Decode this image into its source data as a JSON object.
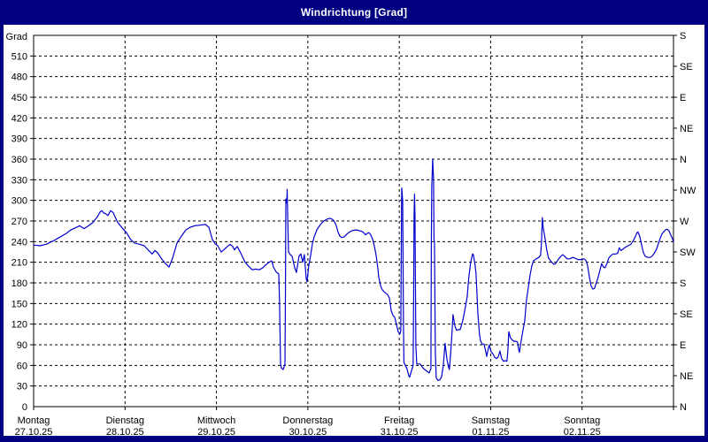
{
  "title": "Windrichtung [Grad]",
  "colors": {
    "frame": "#000080",
    "panel_background": "#ffffff",
    "title_text": "#ffffff",
    "axis": "#000000",
    "grid": "#000000",
    "line": "#0000CD"
  },
  "y_axis_left": {
    "unit_label": "Grad",
    "min": 0,
    "max": 540,
    "label_step": 30,
    "zero_label": "0"
  },
  "y_axis_right": {
    "step": 45,
    "labels": [
      "N",
      "NE",
      "E",
      "SE",
      "S",
      "SW",
      "W",
      "NW",
      "N",
      "NE",
      "E",
      "SE",
      "S"
    ]
  },
  "x_axis": {
    "days": [
      {
        "name": "Montag",
        "date": "27.10.25"
      },
      {
        "name": "Dienstag",
        "date": "28.10.25"
      },
      {
        "name": "Mittwoch",
        "date": "29.10.25"
      },
      {
        "name": "Donnerstag",
        "date": "30.10.25"
      },
      {
        "name": "Freitag",
        "date": "31.10.25"
      },
      {
        "name": "Samstag",
        "date": "01.11.25"
      },
      {
        "name": "Sonntag",
        "date": "02.11.25"
      }
    ]
  },
  "chart_data": {
    "type": "line",
    "title": "Windrichtung [Grad]",
    "ylabel": "Grad",
    "ylim": [
      0,
      540
    ],
    "y_grid_step": 30,
    "xlim_days": [
      0,
      7
    ],
    "grid": true,
    "legend": false,
    "series": [
      {
        "name": "Windrichtung",
        "color": "#0000CD",
        "points": [
          [
            0,
            235
          ],
          [
            0.068,
            234
          ],
          [
            0.136,
            236
          ],
          [
            0.213,
            241
          ],
          [
            0.281,
            246
          ],
          [
            0.358,
            252
          ],
          [
            0.407,
            257
          ],
          [
            0.455,
            260
          ],
          [
            0.503,
            263
          ],
          [
            0.552,
            259
          ],
          [
            0.6,
            263
          ],
          [
            0.649,
            268
          ],
          [
            0.697,
            276
          ],
          [
            0.726,
            283
          ],
          [
            0.746,
            285
          ],
          [
            0.765,
            282
          ],
          [
            0.794,
            280
          ],
          [
            0.813,
            278
          ],
          [
            0.842,
            285
          ],
          [
            0.871,
            282
          ],
          [
            0.891,
            276
          ],
          [
            0.92,
            268
          ],
          [
            0.968,
            260
          ],
          [
            1.017,
            253
          ],
          [
            1.055,
            244
          ],
          [
            1.104,
            238
          ],
          [
            1.162,
            236
          ],
          [
            1.21,
            234
          ],
          [
            1.259,
            227
          ],
          [
            1.297,
            222
          ],
          [
            1.326,
            227
          ],
          [
            1.355,
            224
          ],
          [
            1.394,
            216
          ],
          [
            1.443,
            208
          ],
          [
            1.481,
            203
          ],
          [
            1.52,
            216
          ],
          [
            1.568,
            238
          ],
          [
            1.617,
            248
          ],
          [
            1.665,
            257
          ],
          [
            1.714,
            261
          ],
          [
            1.762,
            263
          ],
          [
            1.82,
            264
          ],
          [
            1.878,
            265
          ],
          [
            1.917,
            261
          ],
          [
            1.956,
            243
          ],
          [
            1.985,
            237
          ],
          [
            2.014,
            234
          ],
          [
            2.052,
            225
          ],
          [
            2.081,
            228
          ],
          [
            2.12,
            233
          ],
          [
            2.149,
            236
          ],
          [
            2.178,
            233
          ],
          [
            2.198,
            228
          ],
          [
            2.227,
            233
          ],
          [
            2.256,
            226
          ],
          [
            2.285,
            218
          ],
          [
            2.314,
            210
          ],
          [
            2.353,
            204
          ],
          [
            2.391,
            199
          ],
          [
            2.43,
            200
          ],
          [
            2.469,
            199
          ],
          [
            2.508,
            202
          ],
          [
            2.537,
            206
          ],
          [
            2.575,
            210
          ],
          [
            2.604,
            212
          ],
          [
            2.624,
            203
          ],
          [
            2.653,
            196
          ],
          [
            2.682,
            193
          ],
          [
            2.691,
            150
          ],
          [
            2.701,
            62
          ],
          [
            2.711,
            56
          ],
          [
            2.73,
            54
          ],
          [
            2.74,
            58
          ],
          [
            2.75,
            62
          ],
          [
            2.755,
            180
          ],
          [
            2.759,
            302
          ],
          [
            2.769,
            296
          ],
          [
            2.774,
            316
          ],
          [
            2.779,
            280
          ],
          [
            2.788,
            225
          ],
          [
            2.808,
            221
          ],
          [
            2.827,
            219
          ],
          [
            2.856,
            202
          ],
          [
            2.875,
            195
          ],
          [
            2.904,
            219
          ],
          [
            2.924,
            222
          ],
          [
            2.943,
            210
          ],
          [
            2.962,
            221
          ],
          [
            2.982,
            186
          ],
          [
            2.991,
            182
          ],
          [
            3.011,
            206
          ],
          [
            3.03,
            220
          ],
          [
            3.05,
            237
          ],
          [
            3.069,
            247
          ],
          [
            3.098,
            257
          ],
          [
            3.117,
            261
          ],
          [
            3.146,
            266
          ],
          [
            3.175,
            270
          ],
          [
            3.214,
            273
          ],
          [
            3.243,
            274
          ],
          [
            3.272,
            272
          ],
          [
            3.291,
            269
          ],
          [
            3.311,
            263
          ],
          [
            3.33,
            254
          ],
          [
            3.35,
            248
          ],
          [
            3.369,
            246
          ],
          [
            3.398,
            247
          ],
          [
            3.427,
            251
          ],
          [
            3.456,
            254
          ],
          [
            3.485,
            256
          ],
          [
            3.524,
            257
          ],
          [
            3.562,
            256
          ],
          [
            3.591,
            255
          ],
          [
            3.611,
            253
          ],
          [
            3.63,
            250
          ],
          [
            3.649,
            252
          ],
          [
            3.669,
            253
          ],
          [
            3.688,
            250
          ],
          [
            3.707,
            244
          ],
          [
            3.727,
            234
          ],
          [
            3.746,
            221
          ],
          [
            3.766,
            201
          ],
          [
            3.775,
            189
          ],
          [
            3.795,
            176
          ],
          [
            3.814,
            170
          ],
          [
            3.843,
            166
          ],
          [
            3.872,
            163
          ],
          [
            3.892,
            158
          ],
          [
            3.901,
            150
          ],
          [
            3.911,
            140
          ],
          [
            3.93,
            133
          ],
          [
            3.95,
            130
          ],
          [
            3.969,
            120
          ],
          [
            3.988,
            109
          ],
          [
            4.008,
            106
          ],
          [
            4.017,
            110
          ],
          [
            4.022,
            220
          ],
          [
            4.027,
            318
          ],
          [
            4.037,
            300
          ],
          [
            4.046,
            120
          ],
          [
            4.051,
            64
          ],
          [
            4.066,
            60
          ],
          [
            4.085,
            55
          ],
          [
            4.104,
            45
          ],
          [
            4.114,
            43
          ],
          [
            4.133,
            52
          ],
          [
            4.152,
            60
          ],
          [
            4.157,
            160
          ],
          [
            4.162,
            280
          ],
          [
            4.167,
            309
          ],
          [
            4.172,
            280
          ],
          [
            4.182,
            90
          ],
          [
            4.191,
            62
          ],
          [
            4.211,
            62
          ],
          [
            4.23,
            62
          ],
          [
            4.249,
            58
          ],
          [
            4.269,
            55
          ],
          [
            4.298,
            52
          ],
          [
            4.327,
            49
          ],
          [
            4.346,
            55
          ],
          [
            4.351,
            240
          ],
          [
            4.356,
            321
          ],
          [
            4.366,
            360
          ],
          [
            4.375,
            330
          ],
          [
            4.38,
            242
          ],
          [
            4.385,
            240
          ],
          [
            4.395,
            80
          ],
          [
            4.404,
            42
          ],
          [
            4.424,
            38
          ],
          [
            4.443,
            39
          ],
          [
            4.462,
            43
          ],
          [
            4.482,
            60
          ],
          [
            4.501,
            92
          ],
          [
            4.52,
            70
          ],
          [
            4.54,
            57
          ],
          [
            4.549,
            54
          ],
          [
            4.569,
            90
          ],
          [
            4.588,
            134
          ],
          [
            4.607,
            118
          ],
          [
            4.627,
            111
          ],
          [
            4.646,
            112
          ],
          [
            4.666,
            112
          ],
          [
            4.695,
            125
          ],
          [
            4.724,
            145
          ],
          [
            4.743,
            160
          ],
          [
            4.762,
            189
          ],
          [
            4.782,
            210
          ],
          [
            4.801,
            222
          ],
          [
            4.811,
            221
          ],
          [
            4.83,
            205
          ],
          [
            4.84,
            193
          ],
          [
            4.859,
            137
          ],
          [
            4.878,
            105
          ],
          [
            4.888,
            96
          ],
          [
            4.907,
            91
          ],
          [
            4.927,
            91
          ],
          [
            4.946,
            80
          ],
          [
            4.956,
            73
          ],
          [
            4.975,
            85
          ],
          [
            4.985,
            90
          ],
          [
            5.004,
            80
          ],
          [
            5.024,
            77
          ],
          [
            5.043,
            72
          ],
          [
            5.062,
            70
          ],
          [
            5.082,
            72
          ],
          [
            5.101,
            81
          ],
          [
            5.12,
            70
          ],
          [
            5.14,
            66
          ],
          [
            5.159,
            67
          ],
          [
            5.178,
            66
          ],
          [
            5.188,
            80
          ],
          [
            5.198,
            109
          ],
          [
            5.217,
            100
          ],
          [
            5.236,
            97
          ],
          [
            5.256,
            95
          ],
          [
            5.275,
            95
          ],
          [
            5.294,
            94
          ],
          [
            5.304,
            85
          ],
          [
            5.314,
            79
          ],
          [
            5.333,
            95
          ],
          [
            5.352,
            110
          ],
          [
            5.372,
            125
          ],
          [
            5.391,
            154
          ],
          [
            5.41,
            172
          ],
          [
            5.43,
            190
          ],
          [
            5.449,
            204
          ],
          [
            5.468,
            212
          ],
          [
            5.497,
            215
          ],
          [
            5.526,
            217
          ],
          [
            5.546,
            220
          ],
          [
            5.556,
            240
          ],
          [
            5.565,
            275
          ],
          [
            5.575,
            260
          ],
          [
            5.594,
            245
          ],
          [
            5.614,
            228
          ],
          [
            5.633,
            216
          ],
          [
            5.662,
            211
          ],
          [
            5.691,
            207
          ],
          [
            5.71,
            208
          ],
          [
            5.739,
            214
          ],
          [
            5.768,
            219
          ],
          [
            5.788,
            221
          ],
          [
            5.807,
            219
          ],
          [
            5.836,
            215
          ],
          [
            5.865,
            215
          ],
          [
            5.894,
            217
          ],
          [
            5.923,
            216
          ],
          [
            5.952,
            214
          ],
          [
            5.991,
            214
          ],
          [
            6.02,
            215
          ],
          [
            6.04,
            213
          ],
          [
            6.059,
            206
          ],
          [
            6.078,
            190
          ],
          [
            6.098,
            176
          ],
          [
            6.117,
            171
          ],
          [
            6.136,
            172
          ],
          [
            6.156,
            180
          ],
          [
            6.175,
            188
          ],
          [
            6.194,
            198
          ],
          [
            6.214,
            208
          ],
          [
            6.233,
            203
          ],
          [
            6.252,
            202
          ],
          [
            6.272,
            208
          ],
          [
            6.291,
            216
          ],
          [
            6.31,
            219
          ],
          [
            6.339,
            222
          ],
          [
            6.369,
            222
          ],
          [
            6.388,
            223
          ],
          [
            6.407,
            231
          ],
          [
            6.426,
            227
          ],
          [
            6.446,
            229
          ],
          [
            6.475,
            232
          ],
          [
            6.504,
            234
          ],
          [
            6.533,
            236
          ],
          [
            6.562,
            242
          ],
          [
            6.582,
            247
          ],
          [
            6.601,
            253
          ],
          [
            6.611,
            254
          ],
          [
            6.63,
            248
          ],
          [
            6.649,
            237
          ],
          [
            6.669,
            225
          ],
          [
            6.688,
            219
          ],
          [
            6.717,
            217
          ],
          [
            6.746,
            217
          ],
          [
            6.766,
            219
          ],
          [
            6.795,
            224
          ],
          [
            6.814,
            229
          ],
          [
            6.834,
            237
          ],
          [
            6.853,
            244
          ],
          [
            6.873,
            251
          ],
          [
            6.892,
            254
          ],
          [
            6.911,
            257
          ],
          [
            6.931,
            258
          ],
          [
            6.95,
            256
          ],
          [
            6.969,
            250
          ],
          [
            6.989,
            244
          ],
          [
            6.998,
            240
          ]
        ]
      }
    ]
  }
}
